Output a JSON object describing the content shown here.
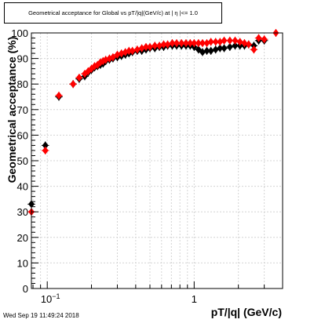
{
  "title": "Geometrical acceptance for Global vs pT/|q|(GeV/c) at | η |<= 1.0",
  "timestamp": "Wed Sep 19 11:49:24 2018",
  "chart_data": {
    "type": "scatter",
    "xlabel": "pT/|q| (GeV/c)",
    "ylabel": "Geometrical acceptance (%)",
    "xscale": "log",
    "xlim": [
      0.078,
      4.0
    ],
    "ylim": [
      0,
      100
    ],
    "yticks": [
      0,
      10,
      20,
      30,
      40,
      50,
      60,
      70,
      80,
      90,
      100
    ],
    "xtick_labels": [
      {
        "value": 0.1,
        "base": "10",
        "exp": "−1"
      },
      {
        "value": 1,
        "base": "1",
        "exp": ""
      }
    ],
    "grid": true,
    "series": [
      {
        "color": "#000000",
        "x": [
          0.078,
          0.097,
          0.12,
          0.15,
          0.165,
          0.18,
          0.19,
          0.2,
          0.21,
          0.22,
          0.23,
          0.24,
          0.25,
          0.265,
          0.28,
          0.3,
          0.32,
          0.34,
          0.36,
          0.38,
          0.41,
          0.44,
          0.47,
          0.5,
          0.54,
          0.58,
          0.62,
          0.66,
          0.71,
          0.76,
          0.82,
          0.88,
          0.94,
          1.0,
          1.07,
          1.14,
          1.22,
          1.3,
          1.4,
          1.5,
          1.6,
          1.75,
          1.9,
          2.05,
          2.2,
          2.35,
          2.55,
          2.75,
          3.0
        ],
        "y": [
          33,
          56,
          75,
          80,
          82,
          83,
          84.5,
          85.5,
          86.5,
          87,
          87.5,
          88,
          89,
          89.5,
          90,
          90.5,
          91,
          91.5,
          92,
          92.5,
          93,
          93,
          93.5,
          94,
          94,
          94.5,
          94.5,
          95,
          95,
          95,
          95,
          95,
          95,
          94.5,
          93.5,
          92.5,
          93,
          93,
          93.5,
          94,
          94,
          94.5,
          95,
          95,
          95,
          95.5,
          95,
          97,
          97
        ]
      },
      {
        "color": "#ff0000",
        "x": [
          0.078,
          0.097,
          0.12,
          0.15,
          0.165,
          0.18,
          0.19,
          0.2,
          0.21,
          0.22,
          0.23,
          0.24,
          0.25,
          0.265,
          0.28,
          0.3,
          0.32,
          0.34,
          0.36,
          0.38,
          0.41,
          0.44,
          0.47,
          0.5,
          0.54,
          0.58,
          0.62,
          0.66,
          0.71,
          0.76,
          0.82,
          0.88,
          0.94,
          1.0,
          1.07,
          1.14,
          1.22,
          1.3,
          1.4,
          1.5,
          1.6,
          1.75,
          1.9,
          2.05,
          2.2,
          2.35,
          2.55,
          2.75,
          3.0,
          3.6
        ],
        "y": [
          30,
          54,
          75.5,
          80,
          82.5,
          84,
          85,
          86,
          87,
          87.5,
          88.5,
          89,
          89.5,
          90,
          90.5,
          91.5,
          92,
          92.5,
          93,
          93,
          93.5,
          94,
          94.5,
          94.5,
          95,
          95,
          95.5,
          95.5,
          96,
          96,
          96,
          96,
          96,
          96,
          96,
          96,
          96,
          96.5,
          96.5,
          96.5,
          97,
          97,
          97,
          96.5,
          96,
          95.5,
          93.5,
          98,
          97.5,
          100
        ]
      }
    ]
  }
}
